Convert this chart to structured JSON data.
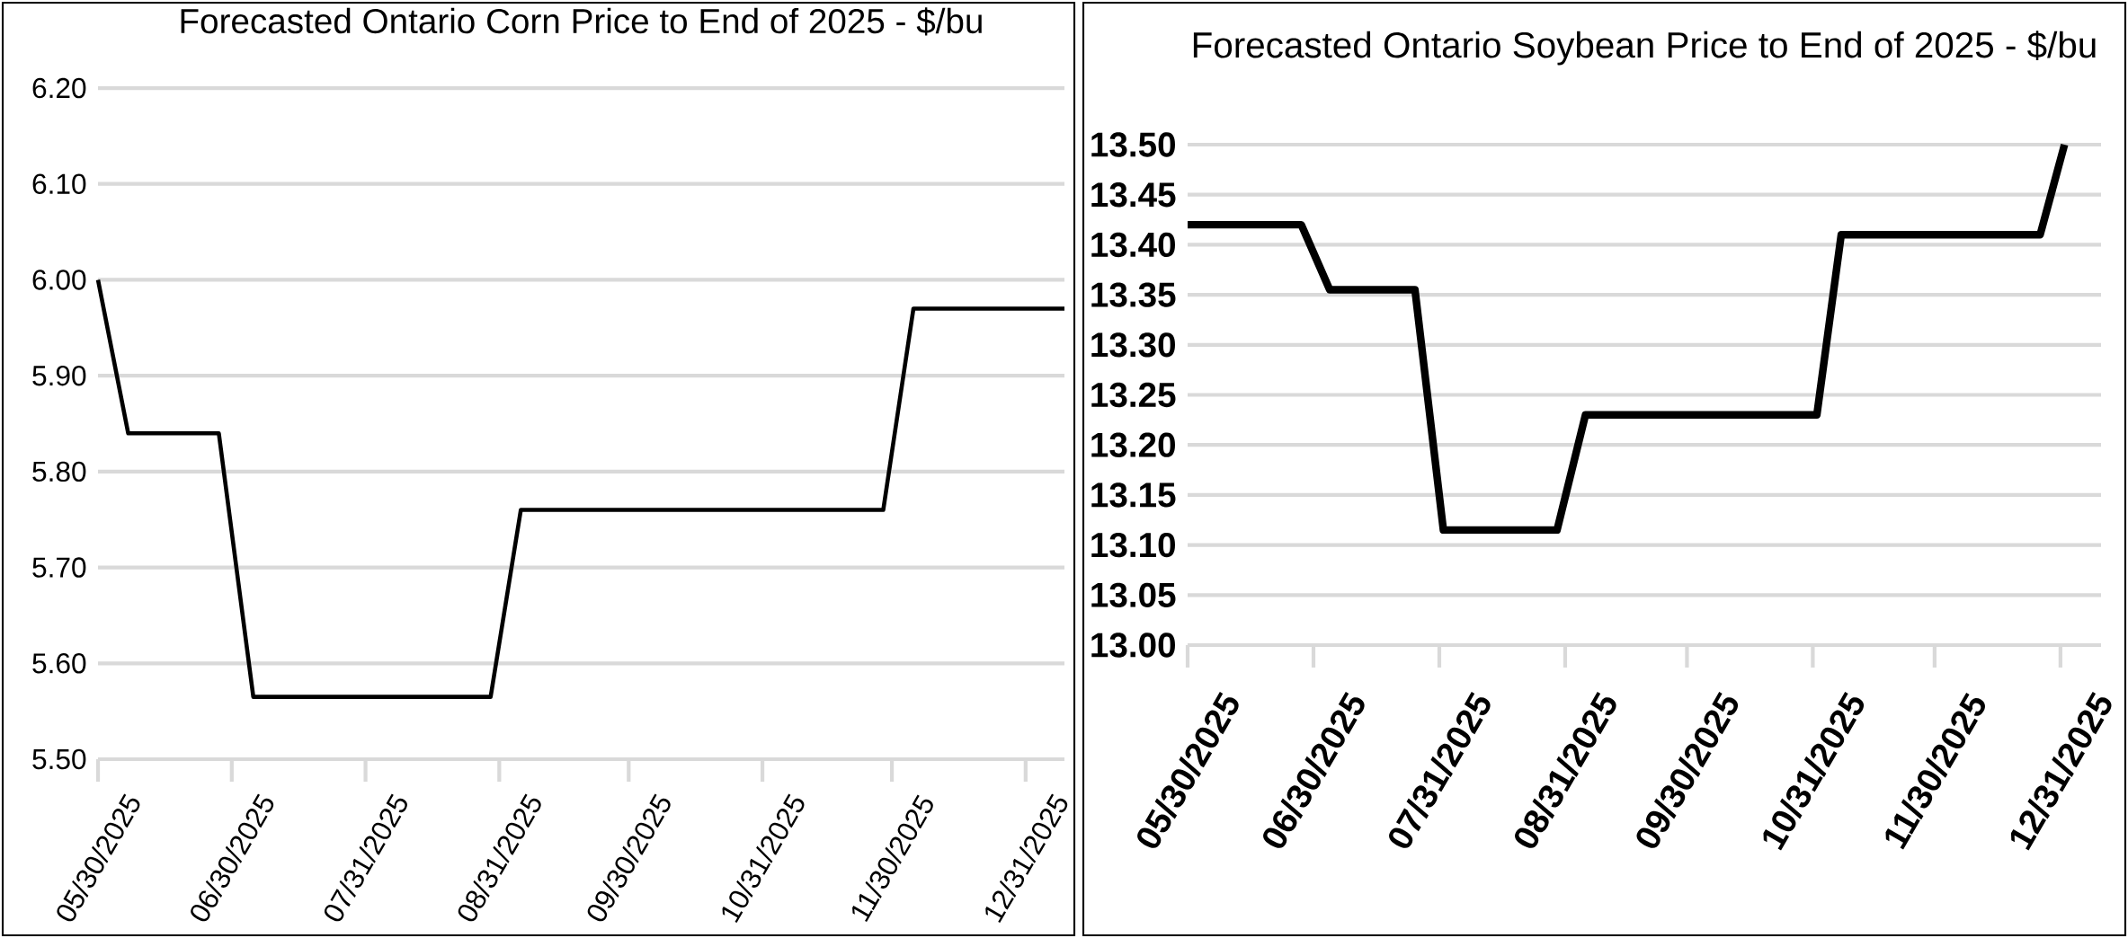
{
  "chart_data": [
    {
      "type": "line",
      "title": "Forecasted Ontario Corn Price to End of 2025 - $/bu",
      "x": [
        "2025-05-30",
        "2025-06-06",
        "2025-06-27",
        "2025-07-05",
        "2025-08-29",
        "2025-09-05",
        "2025-11-28",
        "2025-12-05",
        "2026-01-09"
      ],
      "series": [
        {
          "color": "#000000",
          "values": [
            6.0,
            5.84,
            5.84,
            5.565,
            5.565,
            5.76,
            5.76,
            5.97,
            5.97
          ]
        }
      ],
      "xlim": [
        "2025-05-30",
        "2026-01-09"
      ],
      "xticks": [
        {
          "value": "2025-05-30",
          "label": "05/30/2025"
        },
        {
          "value": "2025-06-30",
          "label": "06/30/2025"
        },
        {
          "value": "2025-07-31",
          "label": "07/31/2025"
        },
        {
          "value": "2025-08-31",
          "label": "08/31/2025"
        },
        {
          "value": "2025-09-30",
          "label": "09/30/2025"
        },
        {
          "value": "2025-10-31",
          "label": "10/31/2025"
        },
        {
          "value": "2025-11-30",
          "label": "11/30/2025"
        },
        {
          "value": "2025-12-31",
          "label": "12/31/2025"
        }
      ],
      "ylim": [
        5.5,
        6.2
      ],
      "yticks": [
        {
          "value": 5.5,
          "label": "5.50"
        },
        {
          "value": 5.6,
          "label": "5.60"
        },
        {
          "value": 5.7,
          "label": "5.70"
        },
        {
          "value": 5.8,
          "label": "5.80"
        },
        {
          "value": 5.9,
          "label": "5.90"
        },
        {
          "value": 6.0,
          "label": "6.00"
        },
        {
          "value": 6.1,
          "label": "6.10"
        },
        {
          "value": 6.2,
          "label": "6.20"
        }
      ],
      "grid": "y"
    },
    {
      "type": "line",
      "title": "Forecasted Ontario Soybean Price to End of 2025 - $/bu",
      "x": [
        "2025-05-30",
        "2025-06-27",
        "2025-07-04",
        "2025-07-25",
        "2025-08-01",
        "2025-08-29",
        "2025-09-05",
        "2025-11-01",
        "2025-11-07",
        "2025-12-26",
        "2026-01-01"
      ],
      "series": [
        {
          "color": "#000000",
          "values": [
            13.42,
            13.42,
            13.355,
            13.355,
            13.115,
            13.115,
            13.23,
            13.23,
            13.41,
            13.41,
            13.5
          ]
        }
      ],
      "xlim": [
        "2025-05-30",
        "2026-01-10"
      ],
      "xticks": [
        {
          "value": "2025-05-30",
          "label": "05/30/2025"
        },
        {
          "value": "2025-06-30",
          "label": "06/30/2025"
        },
        {
          "value": "2025-07-31",
          "label": "07/31/2025"
        },
        {
          "value": "2025-08-31",
          "label": "08/31/2025"
        },
        {
          "value": "2025-09-30",
          "label": "09/30/2025"
        },
        {
          "value": "2025-10-31",
          "label": "10/31/2025"
        },
        {
          "value": "2025-11-30",
          "label": "11/30/2025"
        },
        {
          "value": "2025-12-31",
          "label": "12/31/2025"
        }
      ],
      "ylim": [
        13.0,
        13.5
      ],
      "yticks": [
        {
          "value": 13.0,
          "label": "13.00"
        },
        {
          "value": 13.05,
          "label": "13.05"
        },
        {
          "value": 13.1,
          "label": "13.10"
        },
        {
          "value": 13.15,
          "label": "13.15"
        },
        {
          "value": 13.2,
          "label": "13.20"
        },
        {
          "value": 13.25,
          "label": "13.25"
        },
        {
          "value": 13.3,
          "label": "13.30"
        },
        {
          "value": 13.35,
          "label": "13.35"
        },
        {
          "value": 13.4,
          "label": "13.40"
        },
        {
          "value": 13.45,
          "label": "13.45"
        },
        {
          "value": 13.5,
          "label": "13.50"
        }
      ],
      "grid": "y"
    }
  ]
}
